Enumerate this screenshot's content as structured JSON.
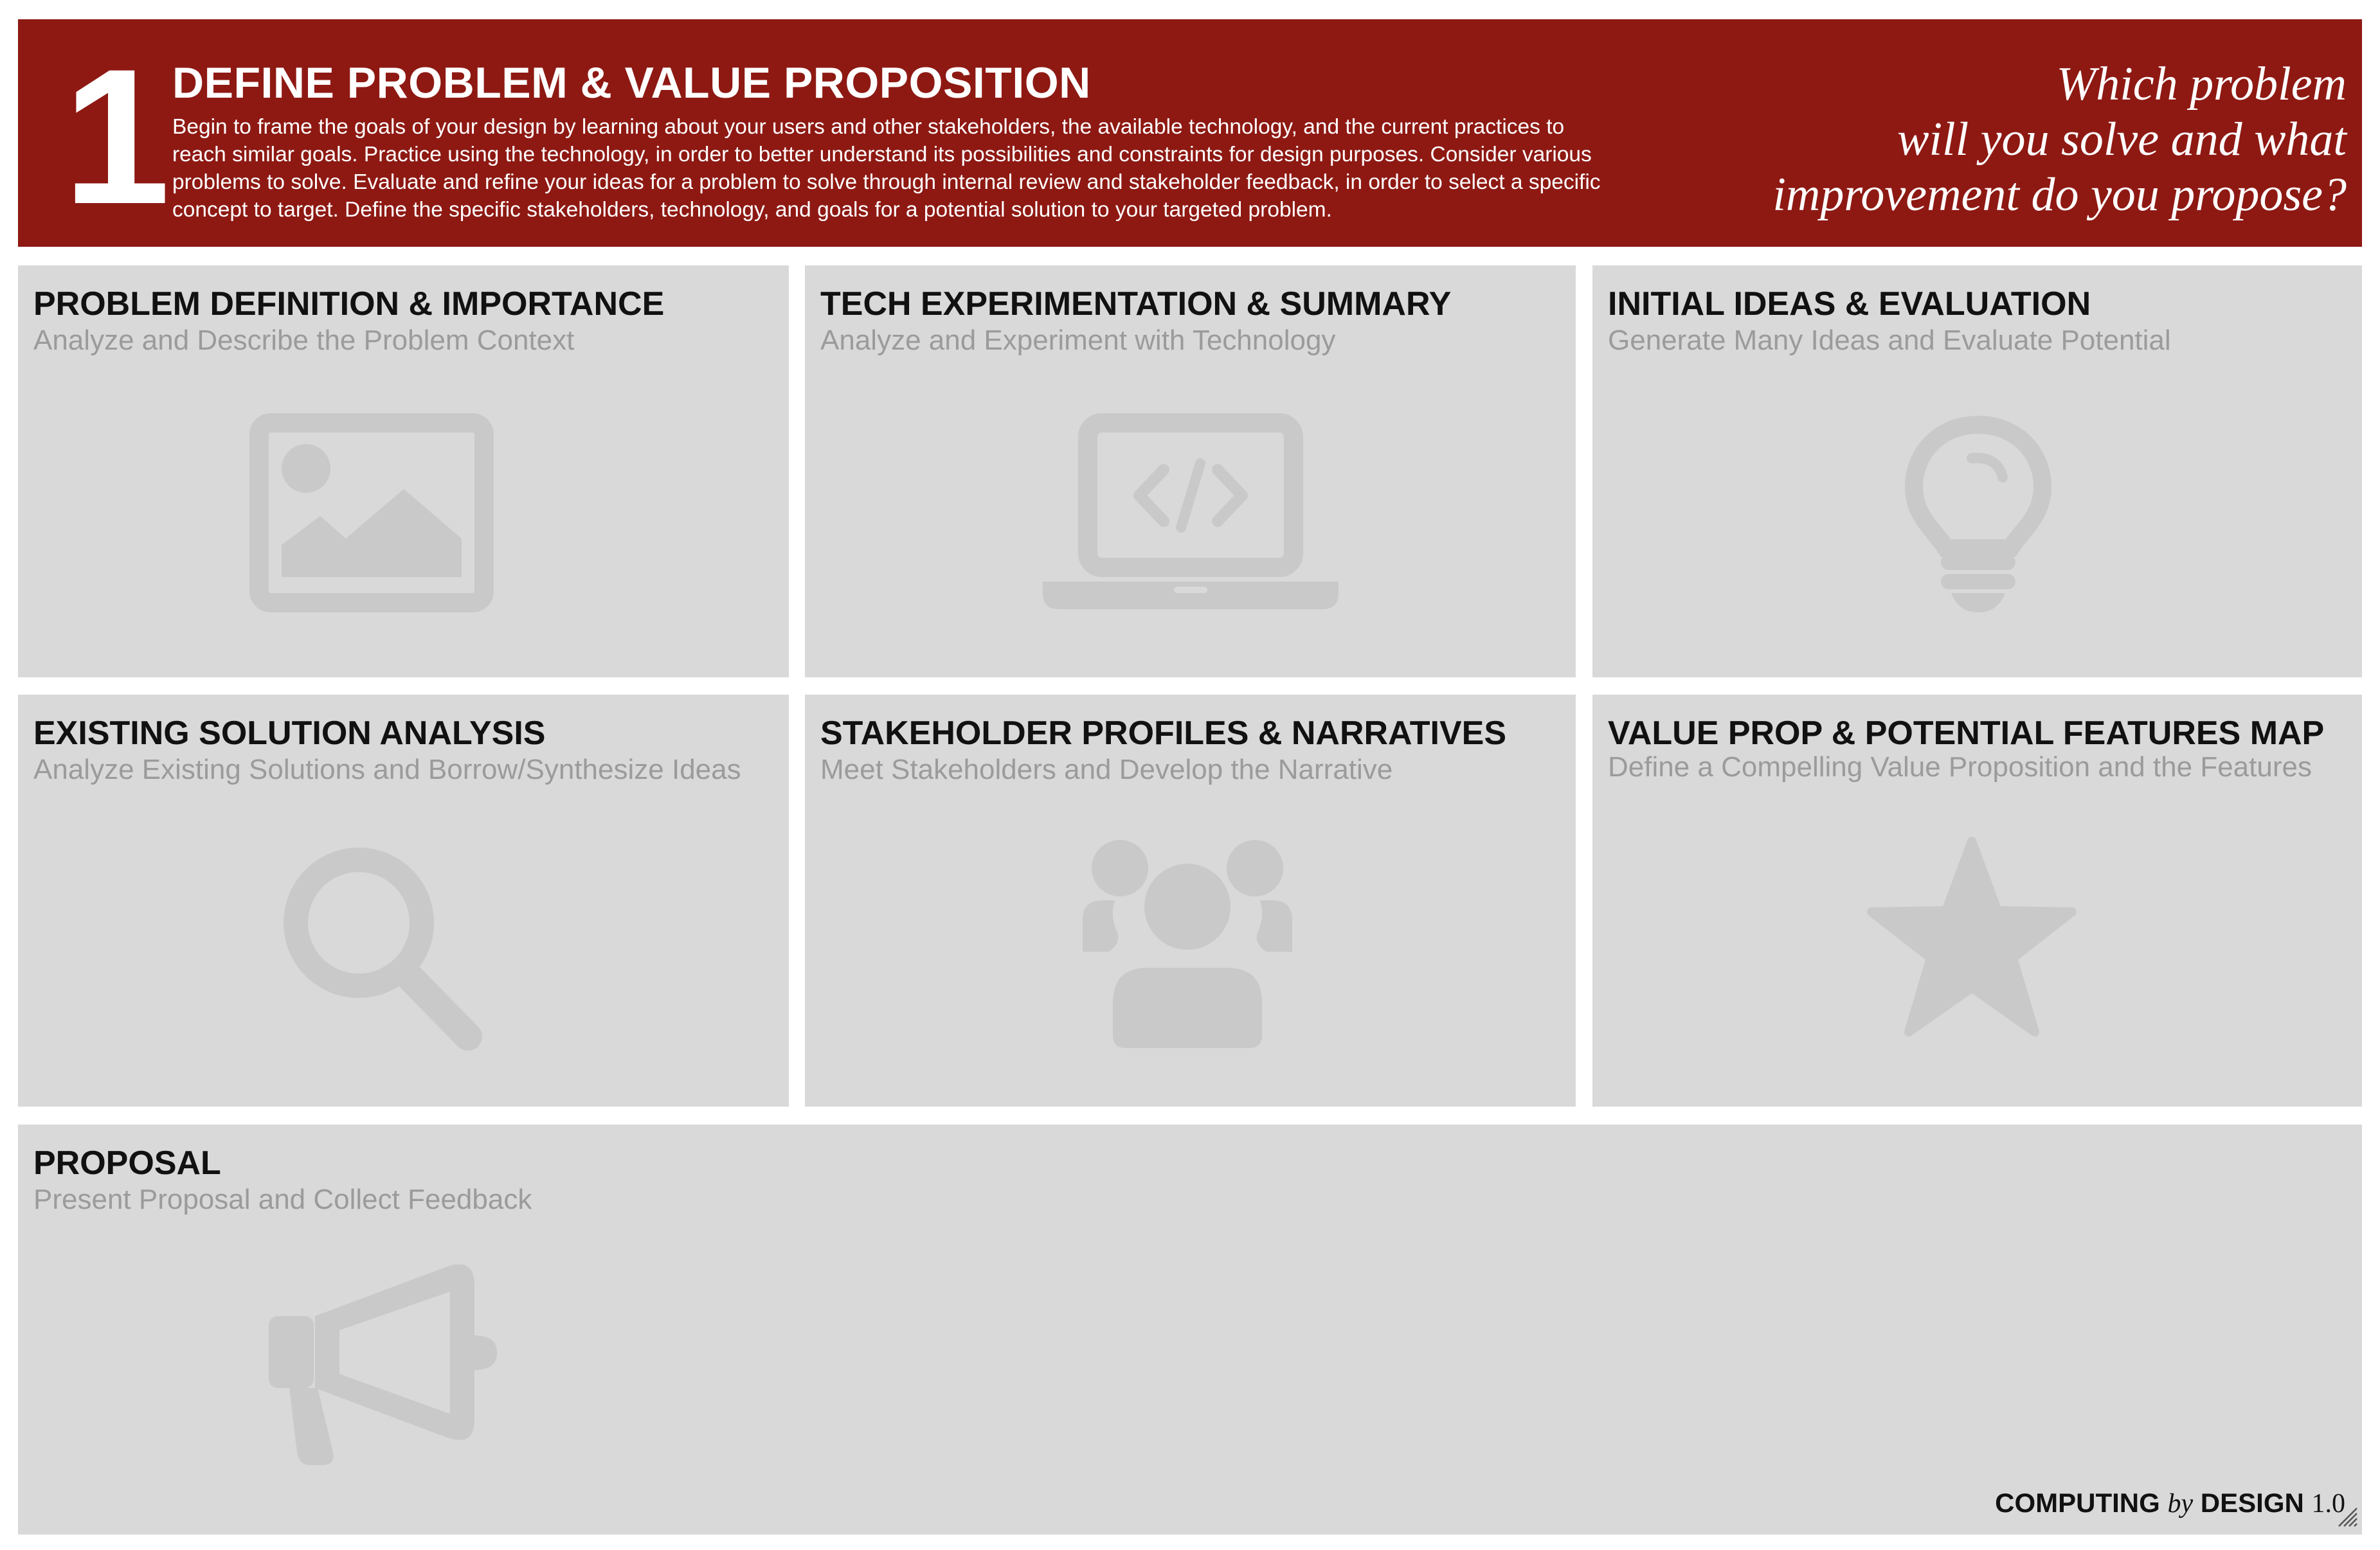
{
  "header": {
    "number": "1",
    "title": "DEFINE PROBLEM & VALUE PROPOSITION",
    "description": "Begin to frame the goals of your design by learning about your users and other stakeholders, the available technology, and the current practices to reach similar goals. Practice using the technology, in order to better understand its possibilities and constraints for design purposes. Consider various problems to solve. Evaluate and refine your ideas for a problem to solve through internal review and stakeholder feedback, in order to select a specific concept to target. Define the specific stakeholders, technology, and goals for a potential solution to your targeted problem.",
    "question_lines": [
      "Which problem",
      "will you solve and what",
      "improvement do you propose?"
    ]
  },
  "cards": [
    {
      "title": "PROBLEM DEFINITION & IMPORTANCE",
      "subtitle": "Analyze and Describe the Problem Context",
      "icon": "image-icon"
    },
    {
      "title": "TECH EXPERIMENTATION & SUMMARY",
      "subtitle": "Analyze and Experiment with Technology",
      "icon": "laptop-code-icon"
    },
    {
      "title": "INITIAL IDEAS & EVALUATION",
      "subtitle": "Generate Many Ideas and Evaluate Potential",
      "icon": "lightbulb-icon"
    },
    {
      "title": "EXISTING SOLUTION ANALYSIS",
      "subtitle": "Analyze Existing Solutions and Borrow/Synthesize Ideas",
      "icon": "search-icon"
    },
    {
      "title": "STAKEHOLDER PROFILES & NARRATIVES",
      "subtitle": "Meet Stakeholders and Develop the Narrative",
      "icon": "people-icon"
    },
    {
      "title": "VALUE PROP & POTENTIAL FEATURES MAP",
      "subtitle": "Define a Compelling Value Proposition and the Features",
      "icon": "star-icon"
    },
    {
      "title": "PROPOSAL",
      "subtitle": "Present Proposal and Collect Feedback",
      "icon": "megaphone-icon"
    }
  ],
  "footer": {
    "brand_part1": "COMPUTING",
    "brand_by": "by",
    "brand_part2": "DESIGN",
    "version": "1.0"
  },
  "colors": {
    "header_bg": "#8e1913",
    "card_bg": "#d9d9d9",
    "icon": "#c9c9c9",
    "subtitle": "#9b9b9b"
  }
}
